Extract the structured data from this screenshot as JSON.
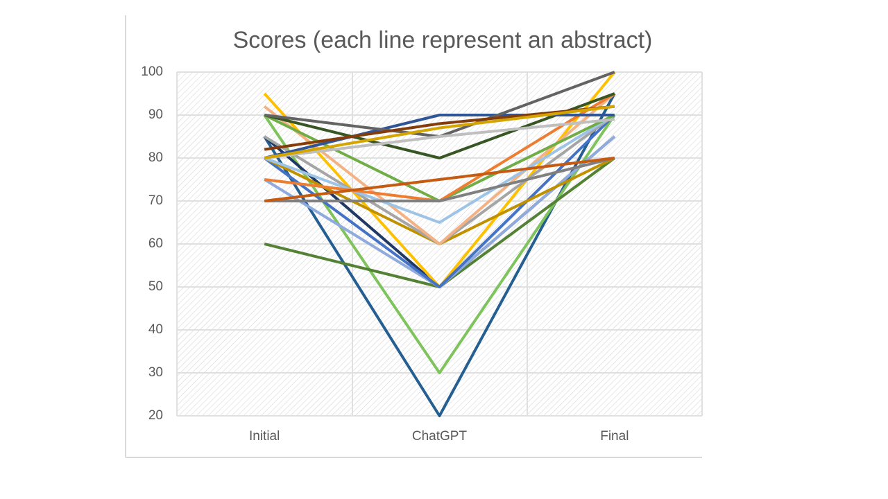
{
  "chart_data": {
    "type": "line",
    "title": "Scores (each line represent an abstract)",
    "categories": [
      "Initial",
      "ChatGPT",
      "Final"
    ],
    "ylim": [
      20,
      100
    ],
    "yticks": [
      20,
      30,
      40,
      50,
      60,
      70,
      80,
      90,
      100
    ],
    "grid": true,
    "series": [
      {
        "color": "#255e91",
        "values": [
          85,
          20,
          95
        ]
      },
      {
        "color": "#7ec35b",
        "values": [
          90,
          30,
          90
        ]
      },
      {
        "color": "#548235",
        "values": [
          60,
          50,
          80
        ]
      },
      {
        "color": "#203864",
        "values": [
          85,
          50,
          85
        ]
      },
      {
        "color": "#ffc000",
        "values": [
          95,
          50,
          100
        ]
      },
      {
        "color": "#8faadc",
        "values": [
          75,
          50,
          85
        ]
      },
      {
        "color": "#4472c4",
        "values": [
          80,
          50,
          90
        ]
      },
      {
        "color": "#bf9000",
        "values": [
          80,
          60,
          80
        ]
      },
      {
        "color": "#a5a5a5",
        "values": [
          85,
          60,
          90
        ]
      },
      {
        "color": "#f4b183",
        "values": [
          92,
          60,
          95
        ]
      },
      {
        "color": "#9dc3e6",
        "values": [
          80,
          65,
          90
        ]
      },
      {
        "color": "#70ad47",
        "values": [
          90,
          70,
          90
        ]
      },
      {
        "color": "#ed7d31",
        "values": [
          75,
          70,
          95
        ]
      },
      {
        "color": "#7f7f7f",
        "values": [
          70,
          70,
          80
        ]
      },
      {
        "color": "#c55a11",
        "values": [
          70,
          75,
          80
        ]
      },
      {
        "color": "#375623",
        "values": [
          90,
          80,
          95
        ]
      },
      {
        "color": "#2f5597",
        "values": [
          80,
          90,
          90
        ]
      },
      {
        "color": "#636363",
        "values": [
          90,
          85,
          100
        ]
      },
      {
        "color": "#bfbfbf",
        "values": [
          80,
          85,
          89
        ]
      },
      {
        "color": "#843c0c",
        "values": [
          82,
          88,
          92
        ]
      },
      {
        "color": "#d4a500",
        "values": [
          80,
          87,
          92
        ]
      }
    ]
  }
}
